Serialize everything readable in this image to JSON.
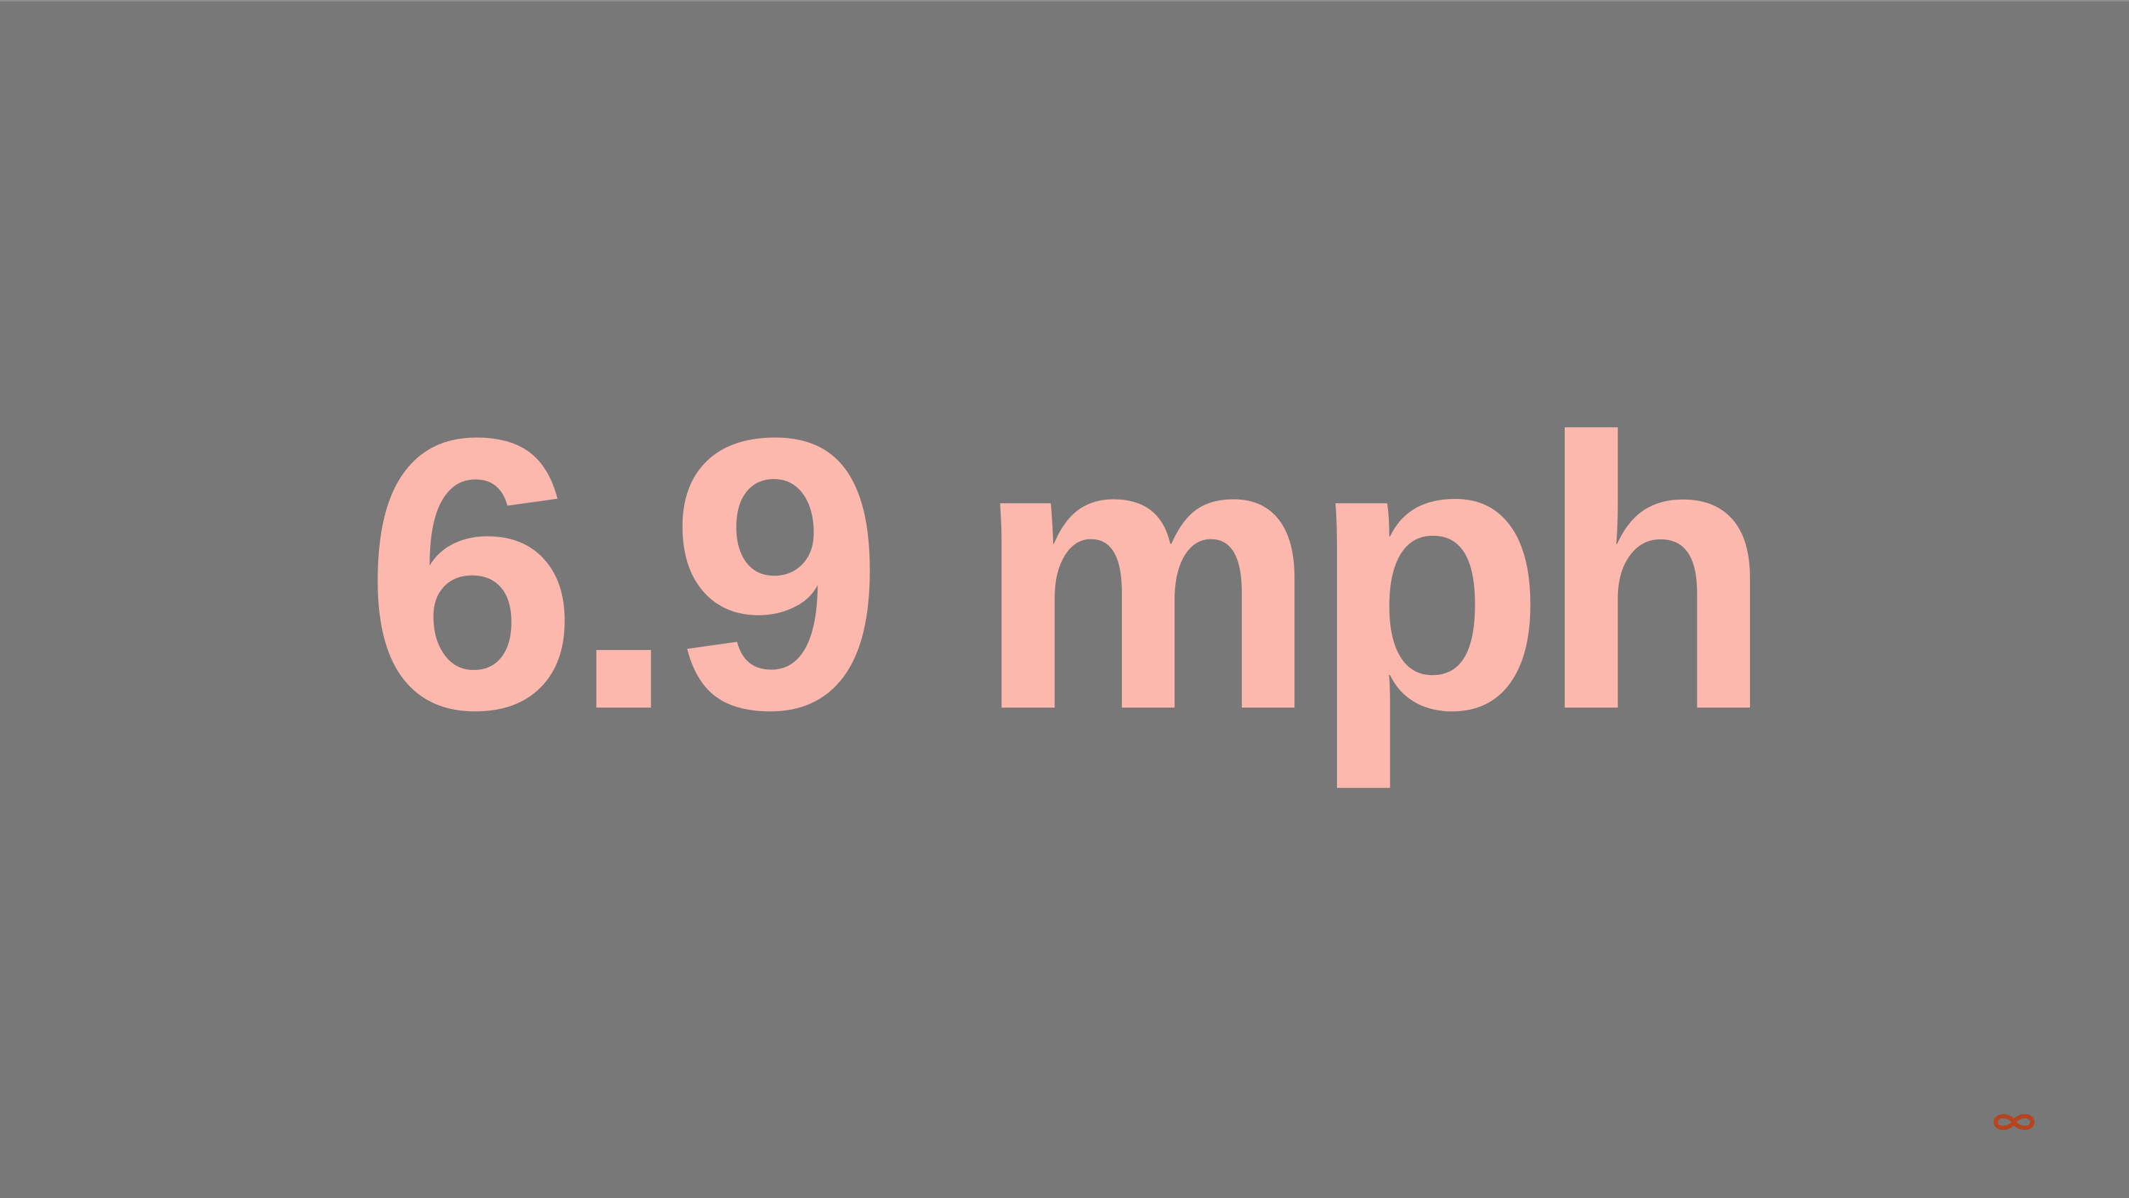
{
  "slide": {
    "value_text": "6.9 mph"
  },
  "colors": {
    "background": "#787878",
    "text": "#fdb8ae",
    "logo": "#b5441f"
  },
  "icons": {
    "corner_logo": "infinity-logo"
  }
}
